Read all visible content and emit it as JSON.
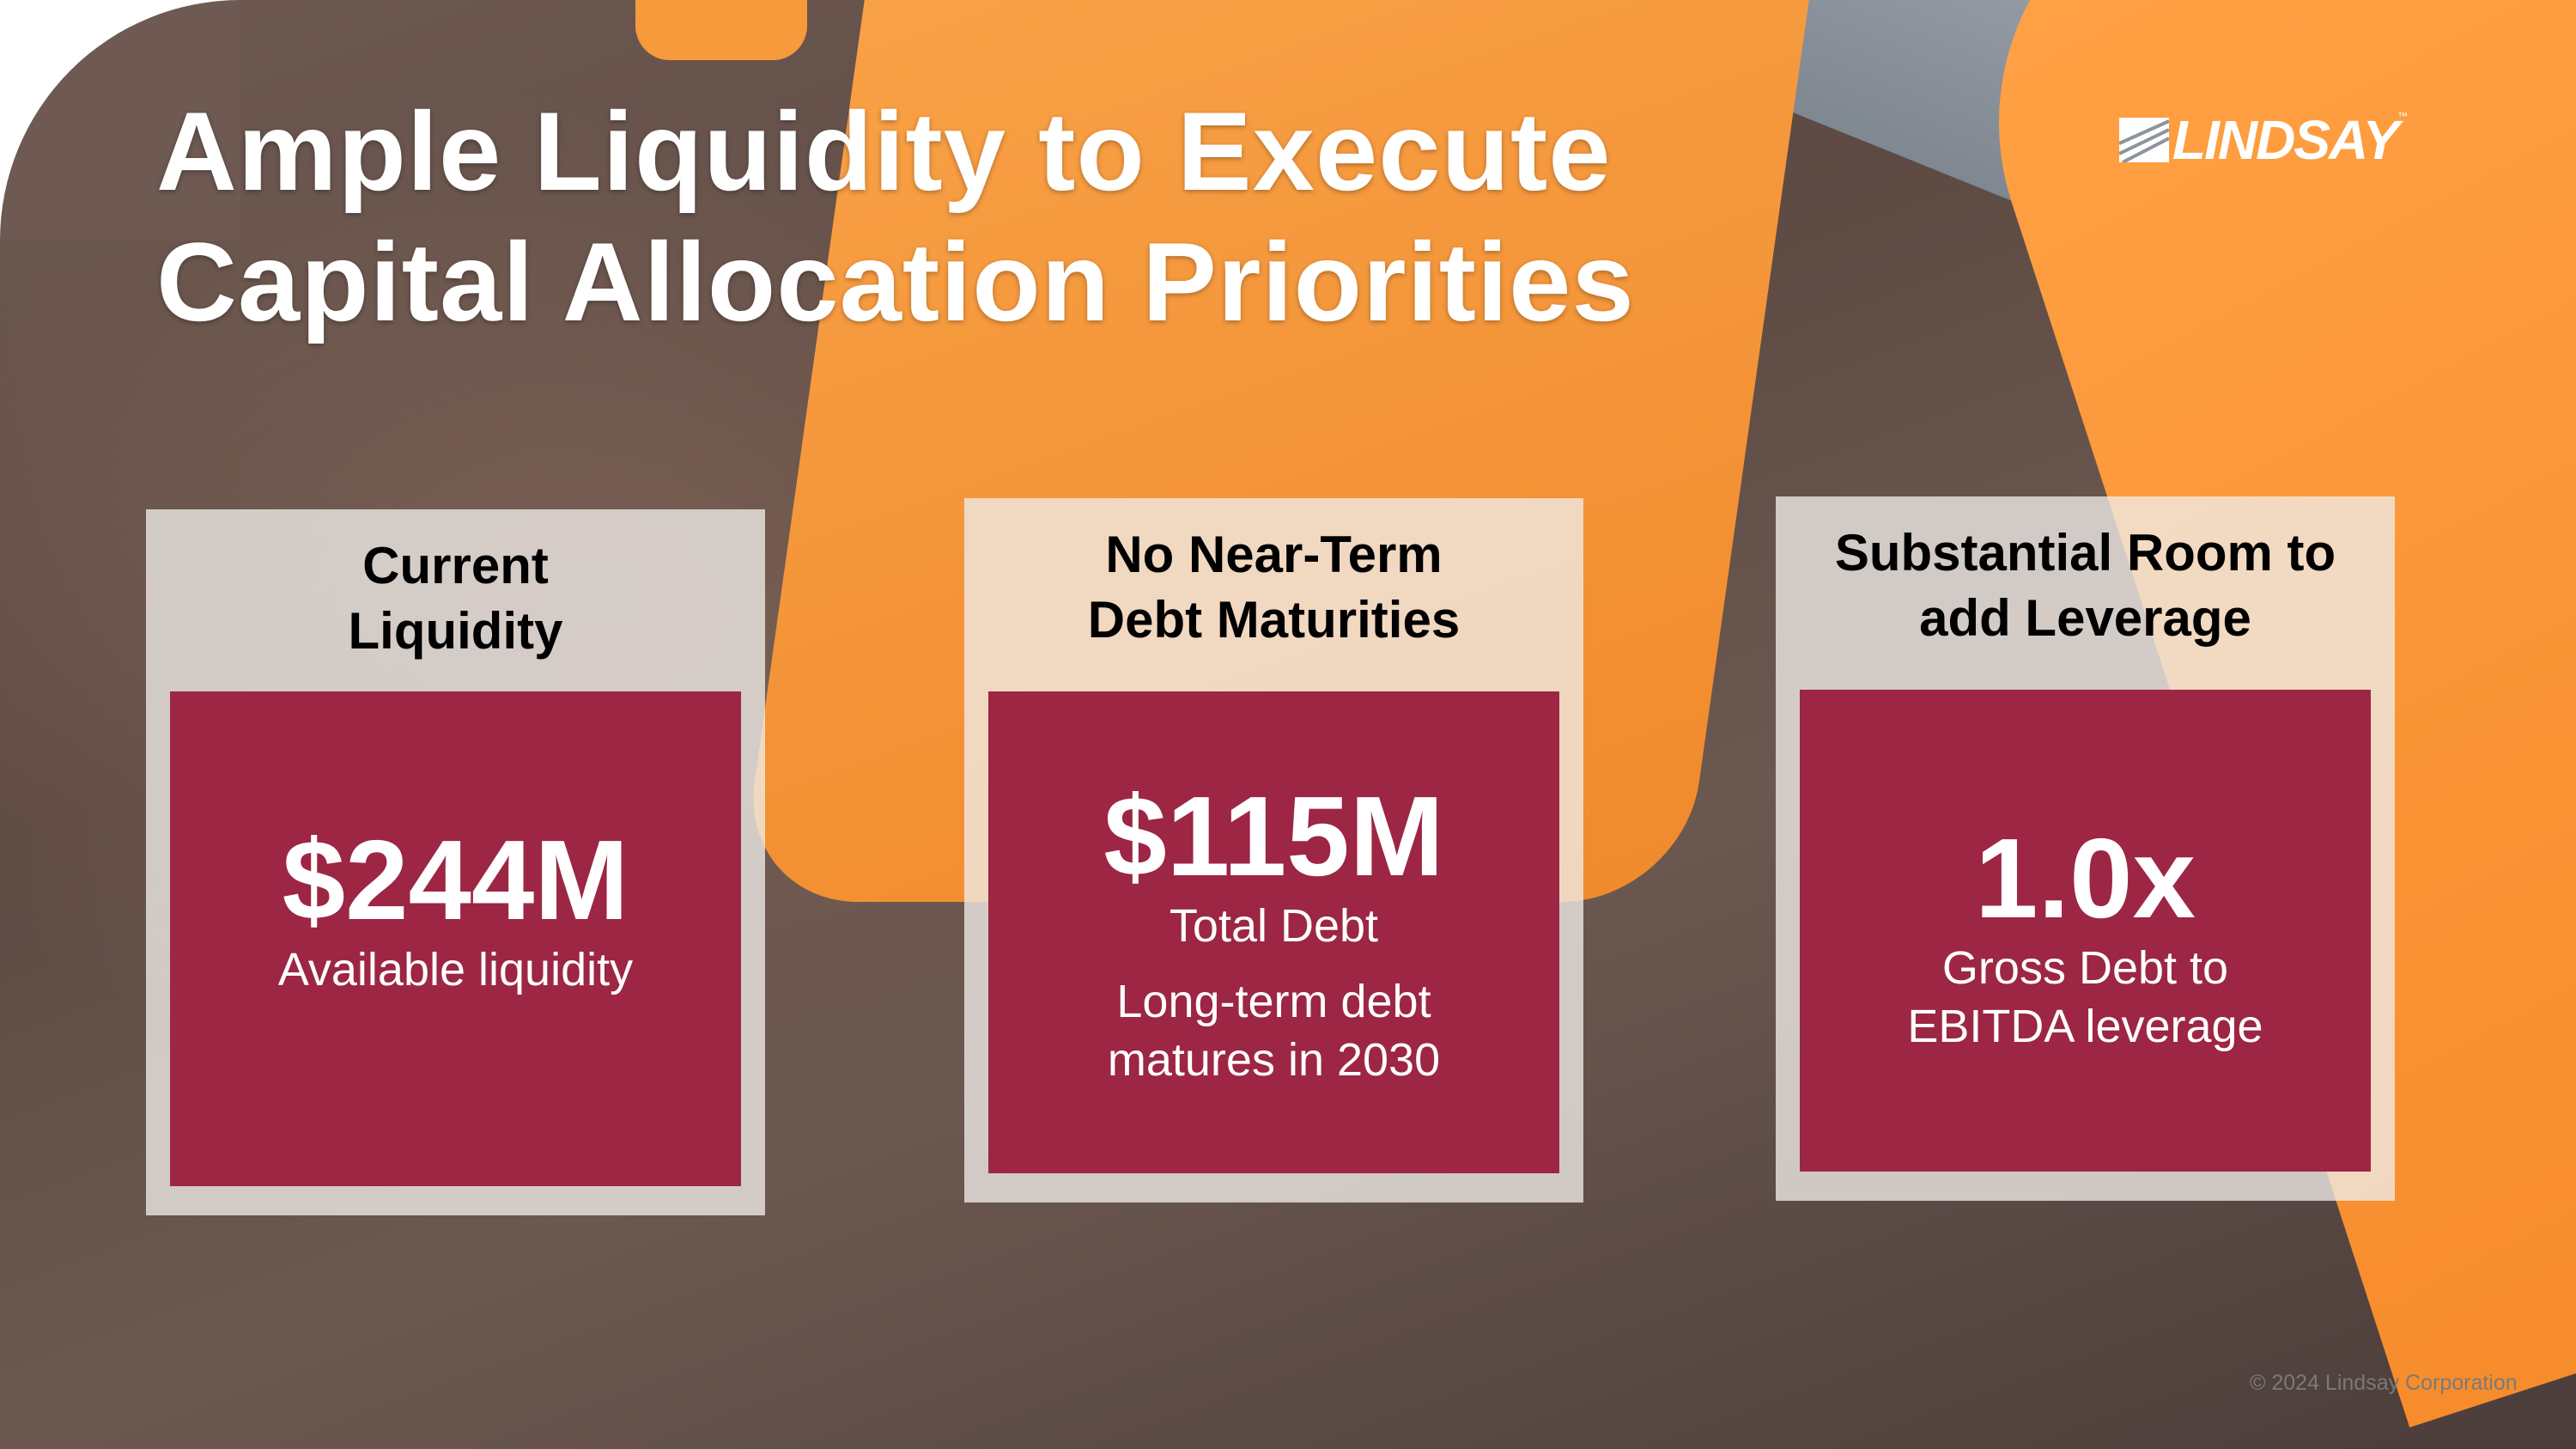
{
  "title": {
    "line1": "Ample Liquidity to Execute",
    "line2": "Capital Allocation Priorities"
  },
  "logo": {
    "text": "LINDSAY",
    "trademark": "™"
  },
  "cards": [
    {
      "heading_line1": "Current",
      "heading_line2": "Liquidity",
      "value": "$244M",
      "label": "Available liquidity"
    },
    {
      "heading_line1": "No Near-Term",
      "heading_line2": "Debt Maturities",
      "value": "$115M",
      "label": "Total Debt",
      "note_line1": "Long-term debt",
      "note_line2": "matures in 2030"
    },
    {
      "heading_line1": "Substantial Room to",
      "heading_line2": "add Leverage",
      "value": "1.0x",
      "label_line1": "Gross Debt to",
      "label_line2": "EBITDA leverage"
    }
  ],
  "footer": "© 2024 Lindsay Corporation",
  "colors": {
    "card_accent": "#9c2644",
    "brand_orange": "#f79a3c"
  }
}
